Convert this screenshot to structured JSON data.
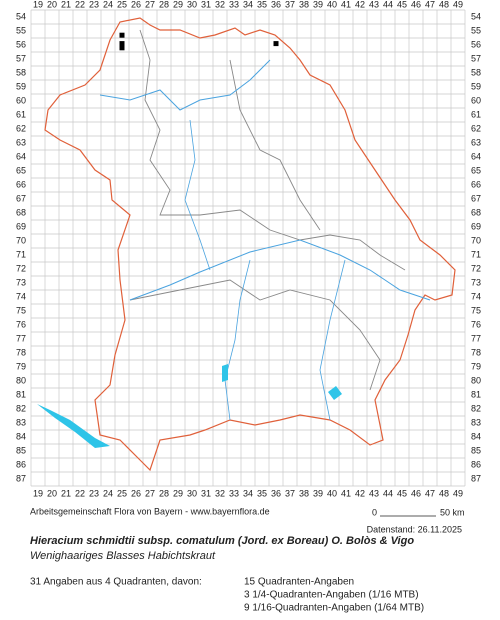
{
  "map": {
    "columns": [
      19,
      20,
      21,
      22,
      23,
      24,
      25,
      26,
      27,
      28,
      29,
      30,
      31,
      32,
      33,
      34,
      35,
      36,
      37,
      38,
      39,
      40,
      41,
      42,
      43,
      44,
      45,
      46,
      47,
      48,
      49
    ],
    "rows": [
      54,
      55,
      56,
      57,
      58,
      59,
      60,
      61,
      62,
      63,
      64,
      65,
      66,
      67,
      68,
      69,
      70,
      71,
      72,
      73,
      74,
      75,
      76,
      77,
      78,
      79,
      80,
      81,
      82,
      83,
      84,
      85,
      86,
      87
    ],
    "occurrences": [
      {
        "column": 25,
        "row": 55.3
      },
      {
        "column": 25,
        "row": 55.9
      },
      {
        "column": 25,
        "row": 56.2
      },
      {
        "column": 36,
        "row": 55.9
      }
    ]
  },
  "credit": "Arbeitsgemeinschaft Flora von Bayern - www.bayernflora.de",
  "scale": {
    "start": "0",
    "end": "50 km"
  },
  "date": "Datenstand: 26.11.2025",
  "title": "Hieracium schmidtii subsp. comatulum (Jord. ex Boreau) O. Bolòs & Vigo",
  "subtitle": "Wenighaariges Blasses Habichtskraut",
  "summary": {
    "total": "31 Angaben aus 4 Quadranten, davon:",
    "items": [
      "15 Quadranten-Angaben",
      "3 1/4-Quadranten-Angaben (1/16 MTB)",
      "9 1/16-Quadranten-Angaben (1/64 MTB)"
    ]
  }
}
